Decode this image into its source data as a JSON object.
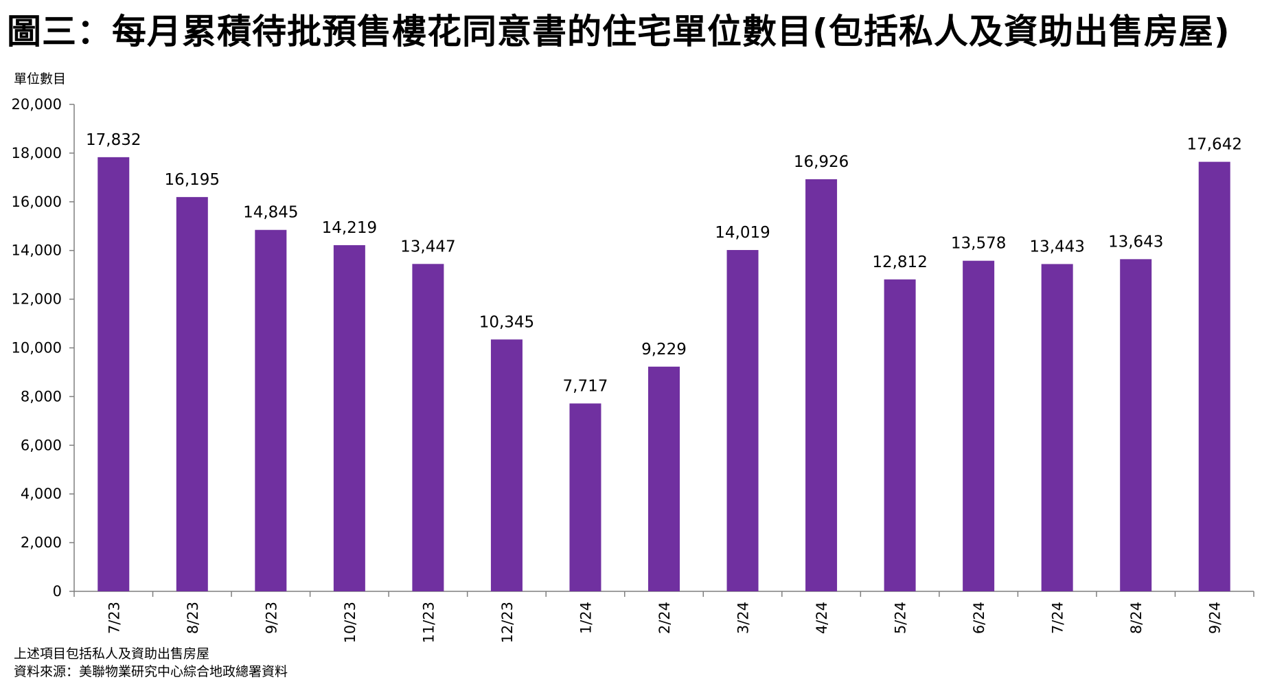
{
  "page": {
    "title": "圖三：每月累積待批預售樓花同意書的住宅單位數目(包括私人及資助出售房屋)",
    "footnote_1": "上述項目包括私人及資助出售房屋",
    "footnote_2": "資料來源：美聯物業研究中心綜合地政總署資料"
  },
  "chart_data": {
    "type": "bar",
    "title": "圖三：每月累積待批預售樓花同意書的住宅單位數目(包括私人及資助出售房屋)",
    "ylabel": "單位數目",
    "xlabel": "",
    "categories": [
      "7/23",
      "8/23",
      "9/23",
      "10/23",
      "11/23",
      "12/23",
      "1/24",
      "2/24",
      "3/24",
      "4/24",
      "5/24",
      "6/24",
      "7/24",
      "8/24",
      "9/24"
    ],
    "values": [
      17832,
      16195,
      14845,
      14219,
      13447,
      10345,
      7717,
      9229,
      14019,
      16926,
      12812,
      13578,
      13443,
      13643,
      17642
    ],
    "data_labels": [
      "17,832",
      "16,195",
      "14,845",
      "14,219",
      "13,447",
      "10,345",
      "7,717",
      "9,229",
      "14,019",
      "16,926",
      "12,812",
      "13,578",
      "13,443",
      "13,643",
      "17,642"
    ],
    "yticks": [
      0,
      2000,
      4000,
      6000,
      8000,
      10000,
      12000,
      14000,
      16000,
      18000,
      20000
    ],
    "ytick_labels": [
      "0",
      "2,000",
      "4,000",
      "6,000",
      "8,000",
      "10,000",
      "12,000",
      "14,000",
      "16,000",
      "18,000",
      "20,000"
    ],
    "ylim": [
      0,
      20000
    ],
    "grid": false,
    "legend": "none",
    "bar_color": "#7030a0"
  }
}
